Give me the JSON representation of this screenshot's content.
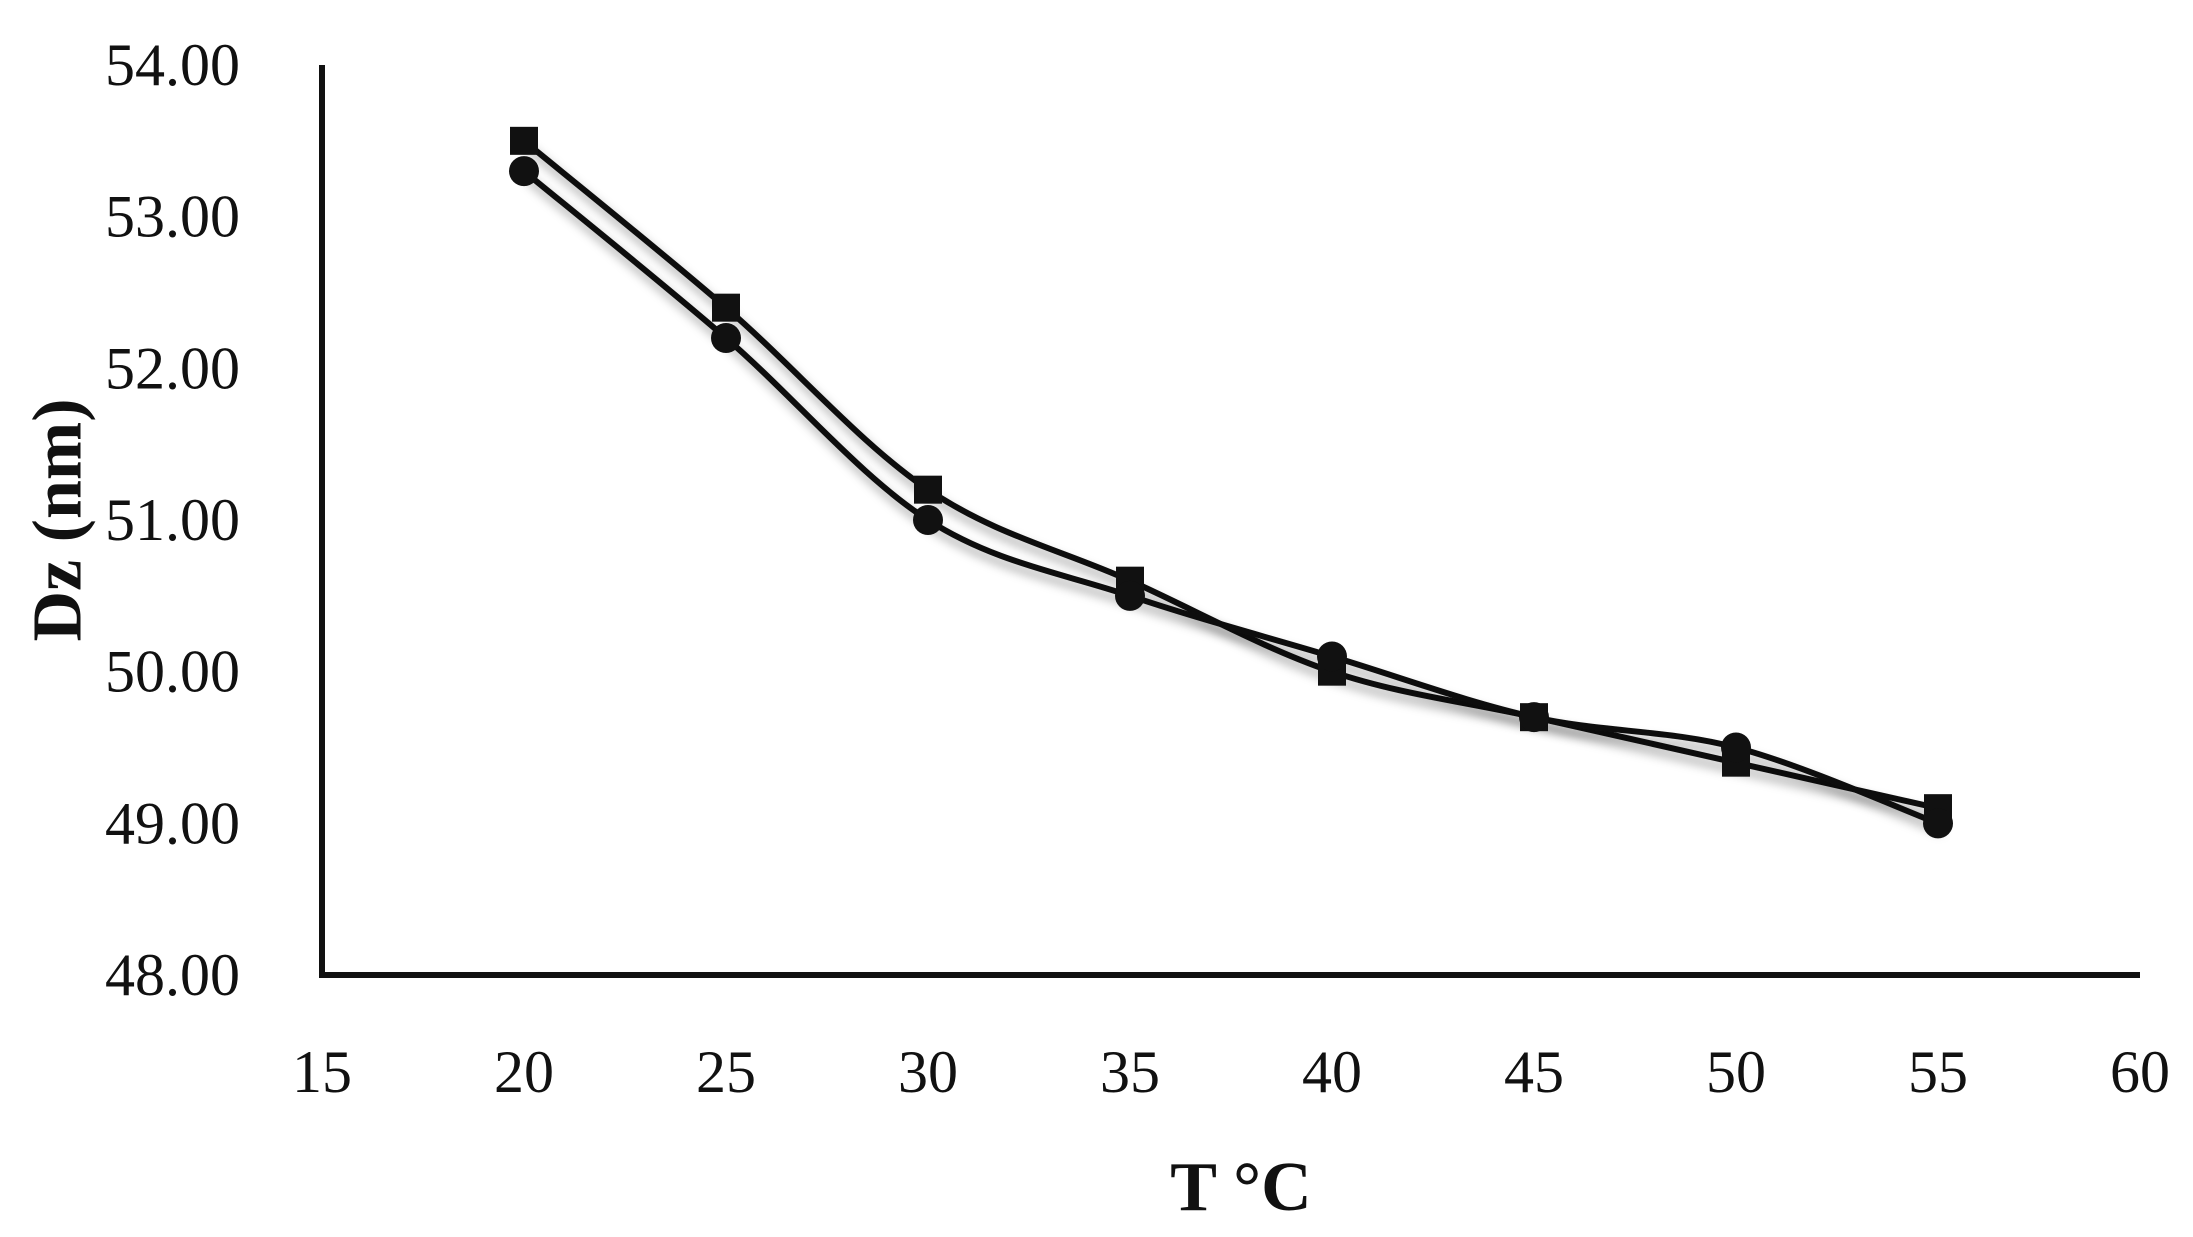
{
  "chart_data": {
    "type": "line",
    "xlabel": "T °C",
    "ylabel": "Dz (nm)",
    "xlim": [
      15,
      60
    ],
    "ylim": [
      48,
      54
    ],
    "x_ticks": [
      "15",
      "20",
      "25",
      "30",
      "35",
      "40",
      "45",
      "50",
      "55",
      "60"
    ],
    "y_ticks": [
      "48.00",
      "49.00",
      "50.00",
      "51.00",
      "52.00",
      "53.00",
      "54.00"
    ],
    "grid": false,
    "legend": "none",
    "smooth": true,
    "line_color": "#111111",
    "series": [
      {
        "marker": "square",
        "x": [
          20,
          25,
          30,
          35,
          40,
          45,
          50,
          55
        ],
        "y": [
          53.5,
          52.4,
          51.2,
          50.6,
          50.0,
          49.7,
          49.4,
          49.1
        ]
      },
      {
        "marker": "circle",
        "x": [
          20,
          25,
          30,
          35,
          40,
          45,
          50,
          55
        ],
        "y": [
          53.3,
          52.2,
          51.0,
          50.5,
          50.1,
          49.7,
          49.5,
          49.0
        ]
      }
    ]
  }
}
